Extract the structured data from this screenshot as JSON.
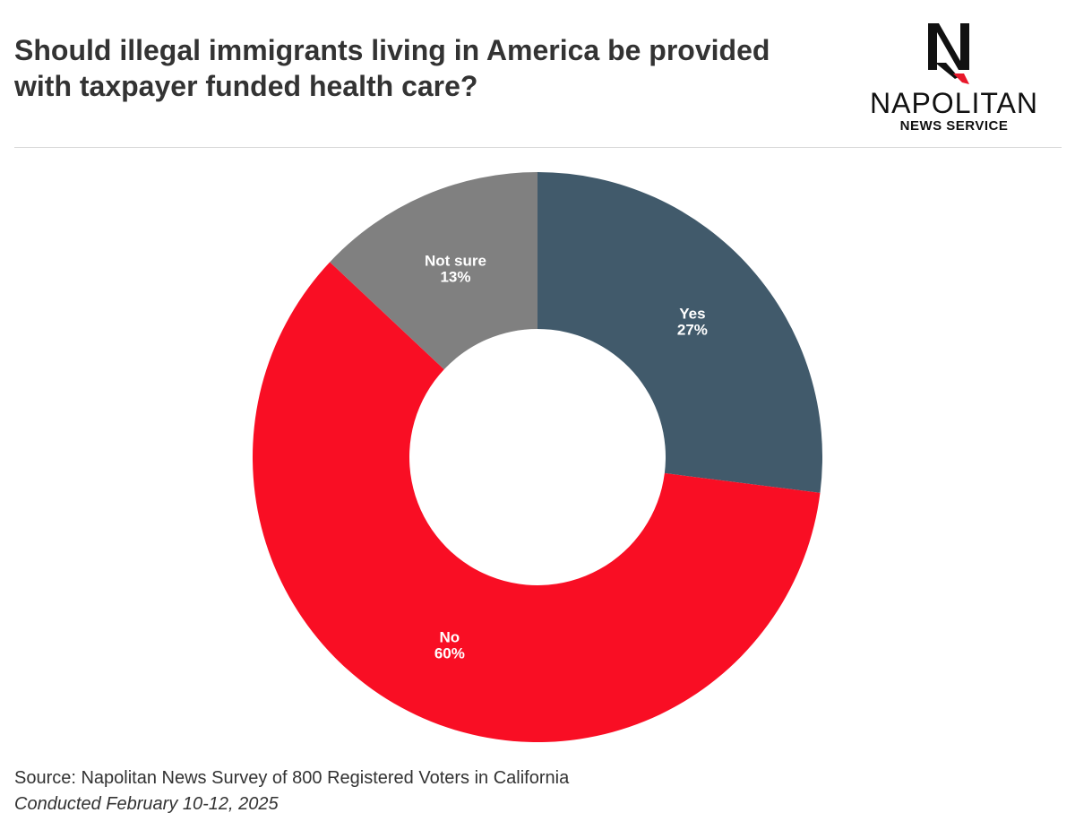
{
  "header": {
    "title_line1": "Should illegal immigrants living in America be provided",
    "title_line2": "with taxpayer funded health care?"
  },
  "logo": {
    "name": "NAPOLITAN",
    "subtitle": "NEWS SERVICE",
    "mark_letter": "N"
  },
  "footer": {
    "source": "Source: Napolitan News Survey of 800 Registered Voters in California",
    "conducted": "Conducted February 10-12, 2025"
  },
  "chart_data": {
    "type": "pie",
    "title": "Should illegal immigrants living in America be provided with taxpayer funded health care?",
    "donut": true,
    "start": "top",
    "direction": "clockwise",
    "slices": [
      {
        "label": "Yes",
        "value": 27,
        "display": "27%",
        "color": "#415a6b"
      },
      {
        "label": "No",
        "value": 60,
        "display": "60%",
        "color": "#f90e24"
      },
      {
        "label": "Not sure",
        "value": 13,
        "display": "13%",
        "color": "#808080"
      }
    ]
  }
}
